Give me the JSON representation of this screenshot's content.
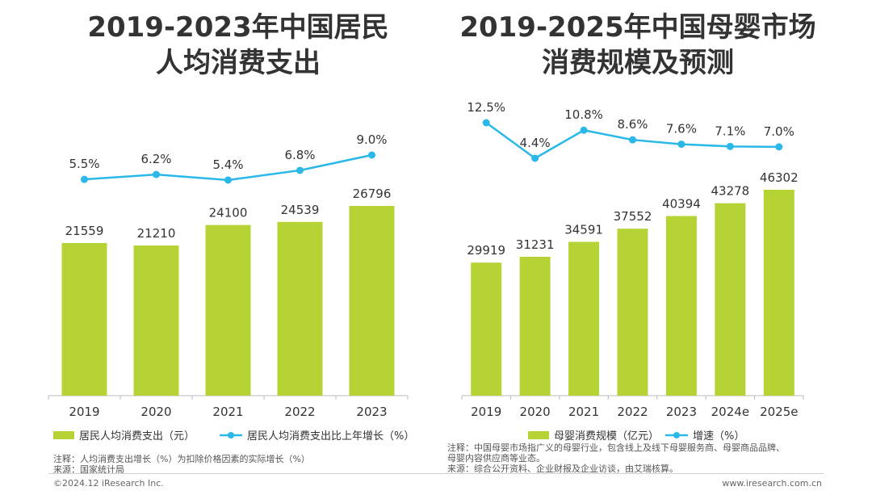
{
  "colors": {
    "bar": "#b5d334",
    "line": "#29b8e8",
    "axis": "#bbbbbb",
    "text": "#333333"
  },
  "chart_data": [
    {
      "type": "bar+line",
      "title": "2019-2023年中国居民\n人均消费支出",
      "categories": [
        "2019",
        "2020",
        "2021",
        "2022",
        "2023"
      ],
      "series": [
        {
          "name": "居民人均消费支出（元）",
          "type": "bar",
          "values": [
            21559,
            21210,
            24100,
            24539,
            26796
          ]
        },
        {
          "name": "居民人均消费支出比上年增长（%）",
          "type": "line",
          "values": [
            5.5,
            6.2,
            5.4,
            6.8,
            9.0
          ],
          "labels": [
            "5.5%",
            "6.2%",
            "5.4%",
            "6.8%",
            "9.0%"
          ]
        }
      ],
      "notes": [
        "注释：人均消费支出增长（%）为扣除价格因素的实际增长（%）",
        "来源：国家统计局"
      ]
    },
    {
      "type": "bar+line",
      "title": "2019-2025年中国母婴市场\n消费规模及预测",
      "categories": [
        "2019",
        "2020",
        "2021",
        "2022",
        "2023",
        "2024e",
        "2025e"
      ],
      "series": [
        {
          "name": "母婴消费规模（亿元）",
          "type": "bar",
          "values": [
            29919,
            31231,
            34591,
            37552,
            40394,
            43278,
            46302
          ]
        },
        {
          "name": "增速（%）",
          "type": "line",
          "values": [
            12.5,
            4.4,
            10.8,
            8.6,
            7.6,
            7.1,
            7.0
          ],
          "labels": [
            "12.5%",
            "4.4%",
            "10.8%",
            "8.6%",
            "7.6%",
            "7.1%",
            "7.0%"
          ]
        }
      ],
      "notes": [
        "注释：中国母婴市场指广义的母婴行业，包含线上及线下母婴服务商、母婴商品品牌、",
        "母婴内容供应商等业态。",
        "来源：综合公开资料、企业财报及企业访谈，由艾瑞核算。"
      ]
    }
  ],
  "footer": {
    "left": "©2024.12 iResearch Inc.",
    "right": "www.iresearch.com.cn"
  }
}
